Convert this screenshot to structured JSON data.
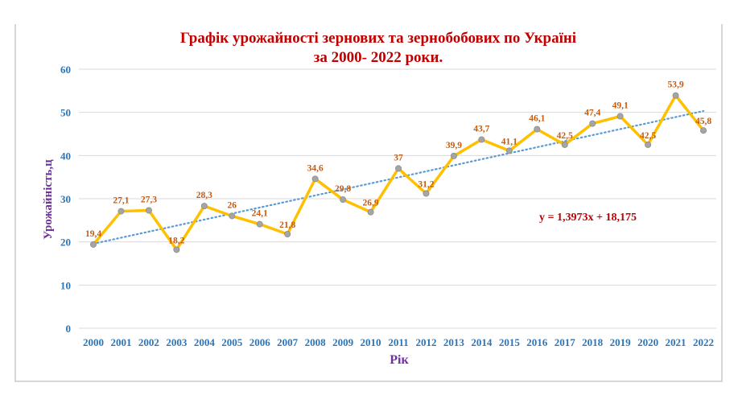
{
  "chart_data": {
    "type": "line",
    "title": "Графік урожайності зернових та зернобобових по Україні",
    "subtitle": "за 2000- 2022 роки.",
    "xlabel": "Рік",
    "ylabel": "Урожайність,ц",
    "ylim": [
      0,
      60
    ],
    "yticks": [
      0,
      10,
      20,
      30,
      40,
      50,
      60
    ],
    "grid": true,
    "categories": [
      "2000",
      "2001",
      "2002",
      "2003",
      "2004",
      "2005",
      "2006",
      "2007",
      "2008",
      "2009",
      "2010",
      "2011",
      "2012",
      "2013",
      "2014",
      "2015",
      "2016",
      "2017",
      "2018",
      "2019",
      "2020",
      "2021",
      "2022"
    ],
    "series": [
      {
        "values": [
          19.4,
          27.1,
          27.3,
          18.2,
          28.3,
          26,
          24.1,
          21.8,
          34.6,
          29.8,
          26.9,
          37,
          31.2,
          39.9,
          43.7,
          41.1,
          46.1,
          42.5,
          47.4,
          49.1,
          42.5,
          53.9,
          45.8
        ],
        "data_labels": [
          "19,4",
          "27,1",
          "27,3",
          "18,2",
          "28,3",
          "26",
          "24,1",
          "21,8",
          "34,6",
          "29,8",
          "26,9",
          "37",
          "31,2",
          "39,9",
          "43,7",
          "41,1",
          "46,1",
          "42,5",
          "47,4",
          "49,1",
          "42,5",
          "53,9",
          "45,8"
        ],
        "color": "#ffc000",
        "marker_color": "#a5a5a5"
      }
    ],
    "trendline": {
      "type": "linear",
      "slope": 1.3973,
      "intercept": 18.175,
      "equation_label": "y = 1,3973x + 18,175",
      "color": "#5b9bd5"
    }
  }
}
